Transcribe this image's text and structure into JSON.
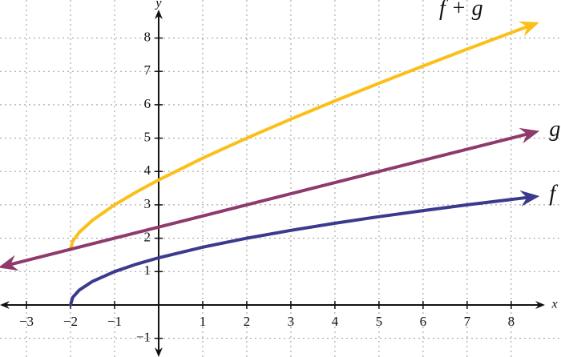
{
  "chart_data": {
    "type": "line",
    "x_label": "x",
    "y_label": "y",
    "xlim": [
      -3.6,
      9.13
    ],
    "ylim": [
      -1.56,
      9.14
    ],
    "xticks": [
      {
        "value": -3,
        "label": "−3"
      },
      {
        "value": -2,
        "label": "−2"
      },
      {
        "value": -1,
        "label": "−1"
      },
      1,
      2,
      3,
      4,
      5,
      6,
      7,
      8
    ],
    "yticks": [
      {
        "value": -1,
        "label": "−1"
      },
      1,
      2,
      3,
      4,
      5,
      6,
      7,
      8
    ],
    "grid": true,
    "series": [
      {
        "name": "f + g",
        "color": "#fbbf1a",
        "x": [
          -2,
          -1.95,
          -1.8,
          -1.5,
          -1,
          -0.5,
          0,
          1,
          2,
          3,
          4,
          5,
          6,
          7,
          8,
          8.5
        ],
        "values": [
          1.667,
          1.907,
          2.18,
          2.54,
          3,
          3.392,
          3.747,
          4.399,
          5,
          5.569,
          6.116,
          6.646,
          7.161,
          7.667,
          8.162,
          8.407
        ]
      },
      {
        "name": "g",
        "color": "#8e3b6b",
        "x": [
          -3.5,
          8.5
        ],
        "values": [
          1.167,
          5.167
        ]
      },
      {
        "name": "f",
        "color": "#3b3b8e",
        "x": [
          -2,
          -1.95,
          -1.8,
          -1.5,
          -1,
          -0.5,
          0,
          1,
          2,
          3,
          4,
          5,
          6,
          7,
          8,
          8.5
        ],
        "values": [
          0,
          0.224,
          0.447,
          0.707,
          1,
          1.225,
          1.414,
          1.732,
          2,
          2.236,
          2.449,
          2.646,
          2.828,
          3,
          3.162,
          3.24
        ]
      }
    ]
  }
}
